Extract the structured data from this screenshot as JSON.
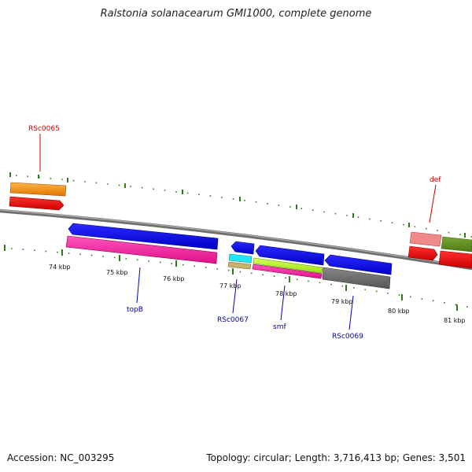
{
  "title": "Ralstonia solanacearum GMI1000, complete genome",
  "footer": {
    "accession": "Accession: NC_003295",
    "summary": "Topology: circular; Length: 3,716,413 bp; Genes: 3,501"
  },
  "scale_labels": [
    "74 kbp",
    "75 kbp",
    "76 kbp",
    "77 kbp",
    "78 kbp",
    "79 kbp",
    "80 kbp",
    "81 kbp"
  ],
  "gene_labels": {
    "rsc0065": "RSc0065",
    "def": "def",
    "topb": "topB",
    "rsc0067": "RSc0067",
    "smf": "smf",
    "rsc0069": "RSc0069"
  },
  "colors": {
    "forward_label": "#cc0000",
    "reverse_label": "#0000aa",
    "backbone": "#808080",
    "ticks": "#2e7d1a"
  }
}
